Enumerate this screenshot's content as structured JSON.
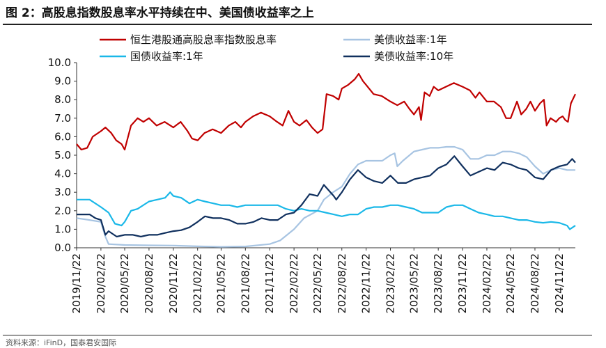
{
  "header": {
    "title": "图 2：高股息指数股息率水平持续在中、美国债收益率之上"
  },
  "footer": {
    "source": "资料来源：iFinD，国泰君安国际"
  },
  "chart_data": {
    "type": "line",
    "ylim": [
      0,
      10
    ],
    "yticks": [
      "0.0",
      "1.0",
      "2.0",
      "3.0",
      "4.0",
      "5.0",
      "6.0",
      "7.0",
      "8.0",
      "9.0",
      "10.0"
    ],
    "x_start": "2019-11-22",
    "x_end": "2025-01-22",
    "xticks": [
      "2019/11/22",
      "2020/02/22",
      "2020/05/22",
      "2020/08/22",
      "2020/11/22",
      "2021/02/22",
      "2021/05/22",
      "2021/08/22",
      "2021/11/22",
      "2022/02/22",
      "2022/05/22",
      "2022/08/22",
      "2022/11/22",
      "2023/02/22",
      "2023/05/22",
      "2023/08/22",
      "2023/11/22",
      "2024/02/22",
      "2024/05/22",
      "2024/08/22",
      "2024/11/22"
    ],
    "legend_position": "top",
    "series": [
      {
        "name": "恒生港股通高股息率指数股息率",
        "color": "#c00000",
        "points": [
          [
            "2019-11-22",
            5.6
          ],
          [
            "2019-12-10",
            5.3
          ],
          [
            "2020-01-01",
            5.4
          ],
          [
            "2020-01-22",
            6.0
          ],
          [
            "2020-02-22",
            6.3
          ],
          [
            "2020-03-10",
            6.5
          ],
          [
            "2020-04-01",
            6.2
          ],
          [
            "2020-04-20",
            5.8
          ],
          [
            "2020-05-10",
            5.6
          ],
          [
            "2020-05-22",
            5.3
          ],
          [
            "2020-06-15",
            6.6
          ],
          [
            "2020-07-10",
            7.0
          ],
          [
            "2020-08-01",
            6.8
          ],
          [
            "2020-08-22",
            7.0
          ],
          [
            "2020-09-20",
            6.6
          ],
          [
            "2020-10-20",
            6.8
          ],
          [
            "2020-11-22",
            6.5
          ],
          [
            "2020-12-20",
            6.8
          ],
          [
            "2021-01-15",
            6.3
          ],
          [
            "2021-02-01",
            5.9
          ],
          [
            "2021-02-22",
            5.8
          ],
          [
            "2021-03-20",
            6.2
          ],
          [
            "2021-04-20",
            6.4
          ],
          [
            "2021-05-22",
            6.2
          ],
          [
            "2021-06-20",
            6.6
          ],
          [
            "2021-07-15",
            6.8
          ],
          [
            "2021-08-05",
            6.5
          ],
          [
            "2021-08-22",
            6.8
          ],
          [
            "2021-09-20",
            7.1
          ],
          [
            "2021-10-20",
            7.3
          ],
          [
            "2021-11-22",
            7.1
          ],
          [
            "2021-12-20",
            6.8
          ],
          [
            "2022-01-10",
            6.6
          ],
          [
            "2022-02-01",
            7.4
          ],
          [
            "2022-02-22",
            6.8
          ],
          [
            "2022-03-15",
            6.6
          ],
          [
            "2022-04-10",
            6.9
          ],
          [
            "2022-05-01",
            6.5
          ],
          [
            "2022-05-22",
            6.2
          ],
          [
            "2022-06-10",
            6.4
          ],
          [
            "2022-06-25",
            8.3
          ],
          [
            "2022-07-20",
            8.2
          ],
          [
            "2022-08-10",
            8.0
          ],
          [
            "2022-08-22",
            8.6
          ],
          [
            "2022-09-15",
            8.8
          ],
          [
            "2022-10-10",
            9.1
          ],
          [
            "2022-10-25",
            9.4
          ],
          [
            "2022-11-10",
            9.0
          ],
          [
            "2022-11-22",
            8.8
          ],
          [
            "2022-12-20",
            8.3
          ],
          [
            "2023-01-20",
            8.2
          ],
          [
            "2023-02-22",
            7.9
          ],
          [
            "2023-03-20",
            7.7
          ],
          [
            "2023-04-15",
            7.9
          ],
          [
            "2023-05-05",
            7.5
          ],
          [
            "2023-05-22",
            7.2
          ],
          [
            "2023-06-10",
            7.6
          ],
          [
            "2023-06-18",
            6.9
          ],
          [
            "2023-07-01",
            8.4
          ],
          [
            "2023-07-20",
            8.2
          ],
          [
            "2023-08-05",
            8.7
          ],
          [
            "2023-08-22",
            8.5
          ],
          [
            "2023-09-20",
            8.7
          ],
          [
            "2023-10-20",
            8.9
          ],
          [
            "2023-11-22",
            8.7
          ],
          [
            "2023-12-20",
            8.5
          ],
          [
            "2024-01-10",
            8.1
          ],
          [
            "2024-01-25",
            8.4
          ],
          [
            "2024-02-22",
            7.9
          ],
          [
            "2024-03-20",
            7.9
          ],
          [
            "2024-04-15",
            7.6
          ],
          [
            "2024-05-05",
            7.0
          ],
          [
            "2024-05-22",
            7.0
          ],
          [
            "2024-06-15",
            7.9
          ],
          [
            "2024-07-01",
            7.2
          ],
          [
            "2024-07-20",
            7.5
          ],
          [
            "2024-08-05",
            7.9
          ],
          [
            "2024-08-22",
            7.4
          ],
          [
            "2024-09-10",
            7.8
          ],
          [
            "2024-09-25",
            8.0
          ],
          [
            "2024-10-05",
            6.6
          ],
          [
            "2024-10-20",
            7.0
          ],
          [
            "2024-11-10",
            6.8
          ],
          [
            "2024-11-22",
            7.0
          ],
          [
            "2024-12-05",
            7.1
          ],
          [
            "2024-12-15",
            6.9
          ],
          [
            "2024-12-25",
            6.8
          ],
          [
            "2025-01-05",
            7.8
          ],
          [
            "2025-01-22",
            8.3
          ]
        ]
      },
      {
        "name": "美债收益率:1年",
        "color": "#a7c4e2",
        "points": [
          [
            "2019-11-22",
            1.6
          ],
          [
            "2020-01-10",
            1.5
          ],
          [
            "2020-02-22",
            1.4
          ],
          [
            "2020-03-10",
            0.6
          ],
          [
            "2020-03-22",
            0.2
          ],
          [
            "2020-05-22",
            0.15
          ],
          [
            "2020-08-22",
            0.13
          ],
          [
            "2020-11-22",
            0.12
          ],
          [
            "2021-02-22",
            0.08
          ],
          [
            "2021-05-22",
            0.05
          ],
          [
            "2021-08-22",
            0.07
          ],
          [
            "2021-11-22",
            0.2
          ],
          [
            "2022-01-01",
            0.4
          ],
          [
            "2022-02-22",
            1.0
          ],
          [
            "2022-04-01",
            1.6
          ],
          [
            "2022-05-22",
            2.0
          ],
          [
            "2022-06-15",
            2.6
          ],
          [
            "2022-07-20",
            3.0
          ],
          [
            "2022-08-22",
            3.3
          ],
          [
            "2022-09-22",
            4.0
          ],
          [
            "2022-10-22",
            4.5
          ],
          [
            "2022-11-22",
            4.7
          ],
          [
            "2022-12-22",
            4.7
          ],
          [
            "2023-01-22",
            4.7
          ],
          [
            "2023-02-22",
            5.0
          ],
          [
            "2023-03-10",
            5.1
          ],
          [
            "2023-03-20",
            4.4
          ],
          [
            "2023-04-10",
            4.7
          ],
          [
            "2023-05-22",
            5.2
          ],
          [
            "2023-06-22",
            5.3
          ],
          [
            "2023-07-22",
            5.4
          ],
          [
            "2023-08-22",
            5.4
          ],
          [
            "2023-09-22",
            5.45
          ],
          [
            "2023-10-22",
            5.45
          ],
          [
            "2023-11-22",
            5.3
          ],
          [
            "2023-12-22",
            4.8
          ],
          [
            "2024-01-22",
            4.8
          ],
          [
            "2024-02-22",
            5.0
          ],
          [
            "2024-03-22",
            5.0
          ],
          [
            "2024-04-22",
            5.2
          ],
          [
            "2024-05-22",
            5.2
          ],
          [
            "2024-06-22",
            5.1
          ],
          [
            "2024-07-22",
            4.9
          ],
          [
            "2024-08-22",
            4.4
          ],
          [
            "2024-09-22",
            4.0
          ],
          [
            "2024-10-22",
            4.2
          ],
          [
            "2024-11-22",
            4.3
          ],
          [
            "2024-12-22",
            4.2
          ],
          [
            "2025-01-22",
            4.2
          ]
        ]
      },
      {
        "name": "国债收益率:1年",
        "color": "#1ab8e8",
        "points": [
          [
            "2019-11-22",
            2.6
          ],
          [
            "2020-01-10",
            2.6
          ],
          [
            "2020-02-22",
            2.2
          ],
          [
            "2020-03-22",
            1.9
          ],
          [
            "2020-04-15",
            1.3
          ],
          [
            "2020-05-10",
            1.2
          ],
          [
            "2020-05-22",
            1.4
          ],
          [
            "2020-06-15",
            2.0
          ],
          [
            "2020-07-10",
            2.1
          ],
          [
            "2020-08-22",
            2.5
          ],
          [
            "2020-09-22",
            2.6
          ],
          [
            "2020-10-22",
            2.7
          ],
          [
            "2020-11-10",
            3.0
          ],
          [
            "2020-11-22",
            2.8
          ],
          [
            "2020-12-22",
            2.7
          ],
          [
            "2021-01-22",
            2.4
          ],
          [
            "2021-02-22",
            2.6
          ],
          [
            "2021-03-22",
            2.5
          ],
          [
            "2021-04-22",
            2.4
          ],
          [
            "2021-05-22",
            2.3
          ],
          [
            "2021-06-22",
            2.3
          ],
          [
            "2021-07-22",
            2.2
          ],
          [
            "2021-08-22",
            2.3
          ],
          [
            "2021-09-22",
            2.3
          ],
          [
            "2021-10-22",
            2.3
          ],
          [
            "2021-11-22",
            2.3
          ],
          [
            "2021-12-22",
            2.3
          ],
          [
            "2022-01-22",
            2.1
          ],
          [
            "2022-02-22",
            2.0
          ],
          [
            "2022-03-22",
            2.1
          ],
          [
            "2022-04-22",
            2.0
          ],
          [
            "2022-05-22",
            2.0
          ],
          [
            "2022-06-22",
            1.9
          ],
          [
            "2022-07-22",
            1.8
          ],
          [
            "2022-08-22",
            1.7
          ],
          [
            "2022-09-22",
            1.8
          ],
          [
            "2022-10-22",
            1.8
          ],
          [
            "2022-11-22",
            2.1
          ],
          [
            "2022-12-22",
            2.2
          ],
          [
            "2023-01-22",
            2.2
          ],
          [
            "2023-02-22",
            2.3
          ],
          [
            "2023-03-22",
            2.3
          ],
          [
            "2023-04-22",
            2.2
          ],
          [
            "2023-05-22",
            2.1
          ],
          [
            "2023-06-22",
            1.9
          ],
          [
            "2023-07-22",
            1.9
          ],
          [
            "2023-08-22",
            1.9
          ],
          [
            "2023-09-22",
            2.2
          ],
          [
            "2023-10-22",
            2.3
          ],
          [
            "2023-11-22",
            2.3
          ],
          [
            "2023-12-22",
            2.1
          ],
          [
            "2024-01-22",
            1.9
          ],
          [
            "2024-02-22",
            1.8
          ],
          [
            "2024-03-22",
            1.7
          ],
          [
            "2024-04-22",
            1.7
          ],
          [
            "2024-05-22",
            1.6
          ],
          [
            "2024-06-22",
            1.5
          ],
          [
            "2024-07-22",
            1.5
          ],
          [
            "2024-08-22",
            1.4
          ],
          [
            "2024-09-22",
            1.35
          ],
          [
            "2024-10-22",
            1.4
          ],
          [
            "2024-11-22",
            1.35
          ],
          [
            "2024-12-22",
            1.2
          ],
          [
            "2025-01-01",
            1.0
          ],
          [
            "2025-01-22",
            1.2
          ]
        ]
      },
      {
        "name": "美债收益率:10年",
        "color": "#10305e",
        "points": [
          [
            "2019-11-22",
            1.8
          ],
          [
            "2020-01-10",
            1.8
          ],
          [
            "2020-02-01",
            1.6
          ],
          [
            "2020-02-22",
            1.5
          ],
          [
            "2020-03-10",
            0.7
          ],
          [
            "2020-03-22",
            0.9
          ],
          [
            "2020-04-22",
            0.6
          ],
          [
            "2020-05-22",
            0.7
          ],
          [
            "2020-06-22",
            0.7
          ],
          [
            "2020-07-22",
            0.6
          ],
          [
            "2020-08-22",
            0.7
          ],
          [
            "2020-09-22",
            0.7
          ],
          [
            "2020-10-22",
            0.8
          ],
          [
            "2020-11-22",
            0.9
          ],
          [
            "2020-12-22",
            0.95
          ],
          [
            "2021-01-22",
            1.1
          ],
          [
            "2021-02-22",
            1.4
          ],
          [
            "2021-03-22",
            1.7
          ],
          [
            "2021-04-22",
            1.6
          ],
          [
            "2021-05-22",
            1.6
          ],
          [
            "2021-06-22",
            1.5
          ],
          [
            "2021-07-22",
            1.3
          ],
          [
            "2021-08-22",
            1.3
          ],
          [
            "2021-09-22",
            1.4
          ],
          [
            "2021-10-22",
            1.6
          ],
          [
            "2021-11-22",
            1.5
          ],
          [
            "2021-12-22",
            1.5
          ],
          [
            "2022-01-22",
            1.8
          ],
          [
            "2022-02-22",
            1.9
          ],
          [
            "2022-03-22",
            2.3
          ],
          [
            "2022-04-22",
            2.9
          ],
          [
            "2022-05-22",
            2.8
          ],
          [
            "2022-06-15",
            3.4
          ],
          [
            "2022-07-22",
            2.8
          ],
          [
            "2022-08-01",
            2.6
          ],
          [
            "2022-08-22",
            3.0
          ],
          [
            "2022-09-22",
            3.7
          ],
          [
            "2022-10-22",
            4.2
          ],
          [
            "2022-11-22",
            3.8
          ],
          [
            "2022-12-22",
            3.6
          ],
          [
            "2023-01-22",
            3.5
          ],
          [
            "2023-02-22",
            3.9
          ],
          [
            "2023-03-22",
            3.5
          ],
          [
            "2023-04-22",
            3.5
          ],
          [
            "2023-05-22",
            3.7
          ],
          [
            "2023-06-22",
            3.8
          ],
          [
            "2023-07-22",
            3.9
          ],
          [
            "2023-08-22",
            4.3
          ],
          [
            "2023-09-22",
            4.5
          ],
          [
            "2023-10-22",
            4.95
          ],
          [
            "2023-11-22",
            4.4
          ],
          [
            "2023-12-22",
            3.9
          ],
          [
            "2024-01-22",
            4.1
          ],
          [
            "2024-02-22",
            4.3
          ],
          [
            "2024-03-22",
            4.2
          ],
          [
            "2024-04-22",
            4.6
          ],
          [
            "2024-05-22",
            4.5
          ],
          [
            "2024-06-22",
            4.3
          ],
          [
            "2024-07-22",
            4.2
          ],
          [
            "2024-08-22",
            3.8
          ],
          [
            "2024-09-22",
            3.7
          ],
          [
            "2024-10-22",
            4.2
          ],
          [
            "2024-11-22",
            4.4
          ],
          [
            "2024-12-22",
            4.5
          ],
          [
            "2025-01-10",
            4.8
          ],
          [
            "2025-01-22",
            4.6
          ]
        ]
      }
    ]
  }
}
